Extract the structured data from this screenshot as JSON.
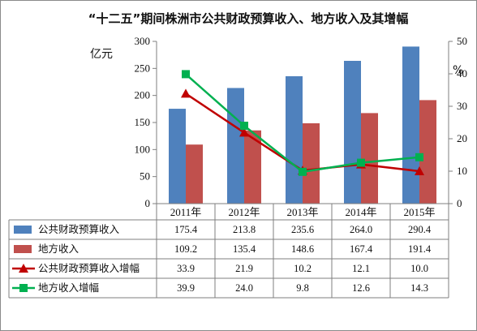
{
  "chart_data": {
    "type": "bar",
    "title": "“十二五”期间株洲市公共财政预算收入、地方收入及其增幅",
    "y_left_unit": "亿元",
    "y_right_unit": "%",
    "categories": [
      "2011年",
      "2012年",
      "2013年",
      "2014年",
      "2015年"
    ],
    "y_left_ticks": [
      "0",
      "50",
      "100",
      "150",
      "200",
      "250",
      "300"
    ],
    "y_right_ticks": [
      "0",
      "10",
      "20",
      "30",
      "40",
      "50"
    ],
    "ylim_left": [
      0,
      300
    ],
    "ylim_right": [
      0,
      50
    ],
    "series": [
      {
        "name": "公共财政预算收入",
        "kind": "bar",
        "axis": "left",
        "color": "#4f81bd",
        "values": [
          175.4,
          213.8,
          235.6,
          264.0,
          290.4
        ],
        "labels": [
          "175.4",
          "213.8",
          "235.6",
          "264.0",
          "290.4"
        ]
      },
      {
        "name": "地方收入",
        "kind": "bar",
        "axis": "left",
        "color": "#c0504d",
        "values": [
          109.2,
          135.4,
          148.6,
          167.4,
          191.4
        ],
        "labels": [
          "109.2",
          "135.4",
          "148.6",
          "167.4",
          "191.4"
        ]
      },
      {
        "name": "公共财政预算收入增幅",
        "kind": "line",
        "axis": "right",
        "color": "#c00000",
        "marker": "triangle",
        "values": [
          33.9,
          21.9,
          10.2,
          12.1,
          10.0
        ],
        "labels": [
          "33.9",
          "21.9",
          "10.2",
          "12.1",
          "10.0"
        ]
      },
      {
        "name": "地方收入增幅",
        "kind": "line",
        "axis": "right",
        "color": "#00b050",
        "marker": "square",
        "values": [
          39.9,
          24.0,
          9.8,
          12.6,
          14.3
        ],
        "labels": [
          "39.9",
          "24.0",
          "9.8",
          "12.6",
          "14.3"
        ]
      }
    ],
    "legend": "data-table",
    "grid": false
  }
}
